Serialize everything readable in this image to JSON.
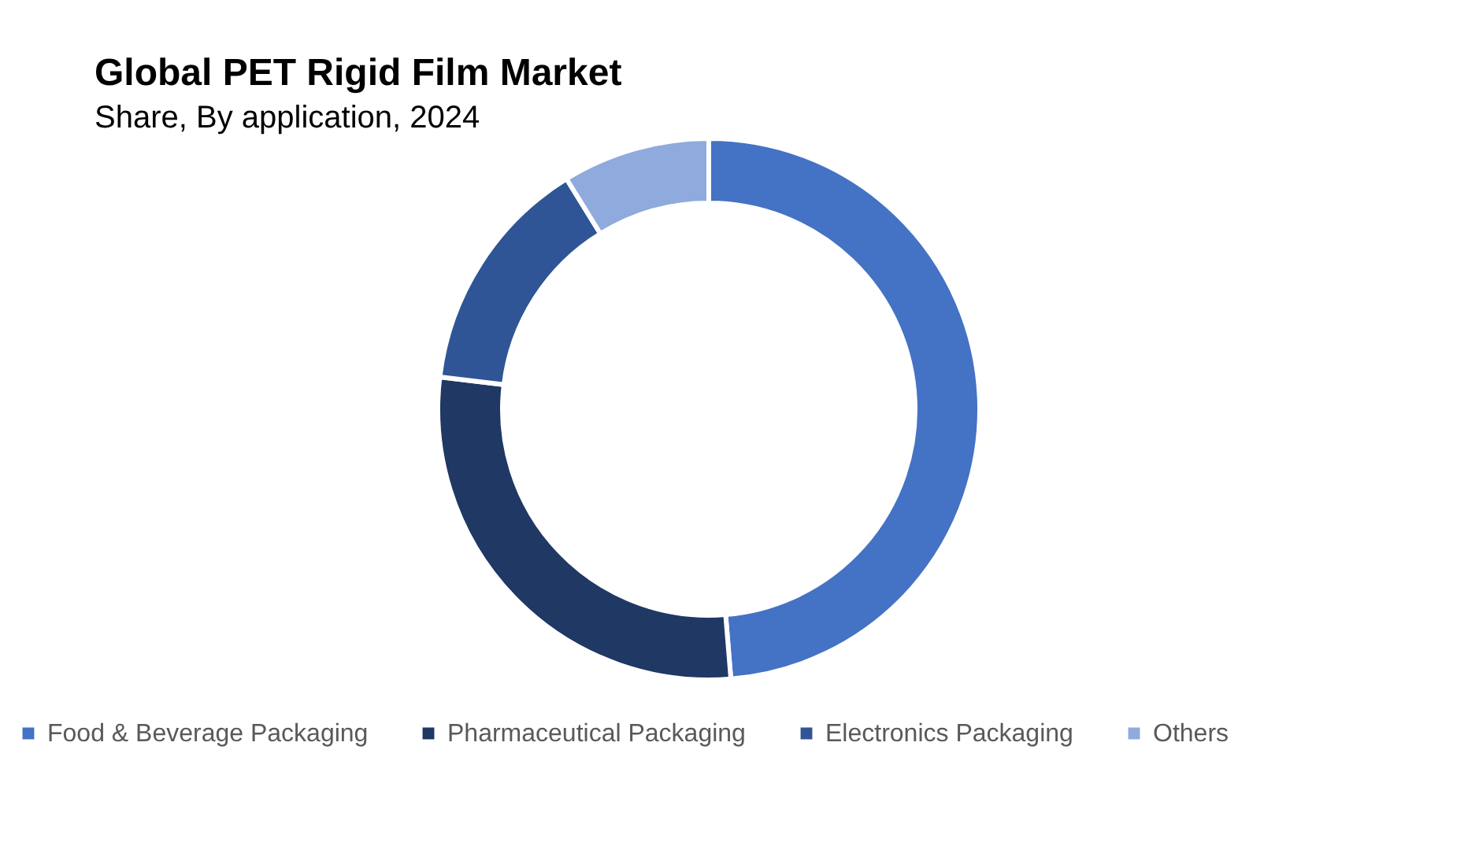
{
  "chart_data": {
    "type": "donut",
    "title": "Global PET Rigid Film Market",
    "subtitle": "Share, By application, 2024",
    "categories": [
      "Food & Beverage Packaging",
      "Pharmaceutical Packaging",
      "Electronics Packaging",
      "Others"
    ],
    "values": [
      48.7,
      28.2,
      14.3,
      8.8
    ],
    "colors": [
      "#4472c4",
      "#1f3864",
      "#2f5597",
      "#8faadc"
    ],
    "legend": "bottom"
  }
}
